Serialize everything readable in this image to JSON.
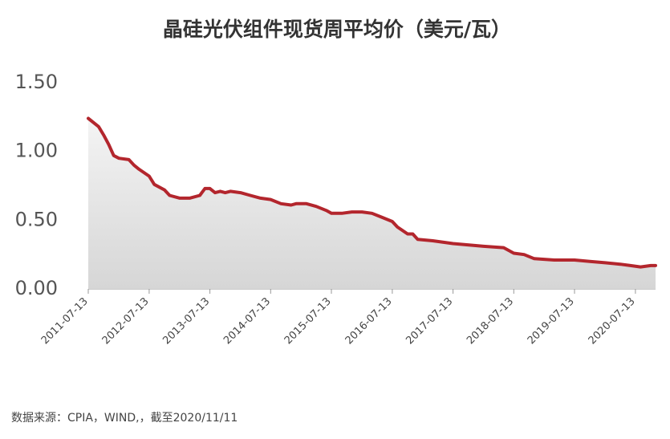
{
  "chart_data": {
    "type": "area",
    "title": "晶硅光伏组件现货周平均价（美元/瓦）",
    "note": "数据来源：CPIA，WIND,，截至2020/11/11",
    "color": "#b3262d",
    "x": [
      "2011-07-13",
      "2011-09-13",
      "2011-10-13",
      "2011-11-13",
      "2011-12-13",
      "2012-01-13",
      "2012-03-13",
      "2012-04-13",
      "2012-05-13",
      "2012-07-13",
      "2012-08-13",
      "2012-10-13",
      "2012-11-13",
      "2013-01-13",
      "2013-03-13",
      "2013-05-13",
      "2013-06-13",
      "2013-07-13",
      "2013-08-13",
      "2013-09-13",
      "2013-10-13",
      "2013-11-13",
      "2014-01-13",
      "2014-03-13",
      "2014-05-13",
      "2014-07-13",
      "2014-09-13",
      "2014-11-13",
      "2014-12-13",
      "2015-02-13",
      "2015-04-13",
      "2015-06-13",
      "2015-07-13",
      "2015-09-13",
      "2015-11-13",
      "2016-01-13",
      "2016-03-13",
      "2016-05-13",
      "2016-07-13",
      "2016-08-13",
      "2016-10-13",
      "2016-11-13",
      "2016-12-13",
      "2017-03-13",
      "2017-07-13",
      "2018-01-13",
      "2018-05-13",
      "2018-07-13",
      "2018-09-13",
      "2018-11-13",
      "2019-03-13",
      "2019-07-13",
      "2019-10-13",
      "2020-01-13",
      "2020-04-13",
      "2020-06-13",
      "2020-08-13",
      "2020-10-13",
      "2020-11-11"
    ],
    "values": [
      1.24,
      1.18,
      1.12,
      1.05,
      0.97,
      0.95,
      0.94,
      0.9,
      0.87,
      0.82,
      0.76,
      0.72,
      0.68,
      0.66,
      0.66,
      0.68,
      0.73,
      0.73,
      0.7,
      0.71,
      0.7,
      0.71,
      0.7,
      0.68,
      0.66,
      0.65,
      0.62,
      0.61,
      0.62,
      0.62,
      0.6,
      0.57,
      0.55,
      0.55,
      0.56,
      0.56,
      0.55,
      0.52,
      0.49,
      0.45,
      0.4,
      0.4,
      0.36,
      0.35,
      0.33,
      0.31,
      0.3,
      0.26,
      0.25,
      0.22,
      0.21,
      0.21,
      0.2,
      0.19,
      0.18,
      0.17,
      0.16,
      0.17,
      0.17
    ],
    "xlim": [
      "2011-07-13",
      "2020-11-11"
    ],
    "xticks": [
      "2011-07-13",
      "2012-07-13",
      "2013-07-13",
      "2014-07-13",
      "2015-07-13",
      "2016-07-13",
      "2017-07-13",
      "2018-07-13",
      "2019-07-13",
      "2020-07-13"
    ],
    "ylim": [
      0,
      1.5
    ],
    "yticks": [
      {
        "value": 0,
        "label": "0.00"
      },
      {
        "value": 0.5,
        "label": "0.50"
      },
      {
        "value": 1,
        "label": "1.00"
      },
      {
        "value": 1.5,
        "label": "1.50"
      }
    ]
  }
}
